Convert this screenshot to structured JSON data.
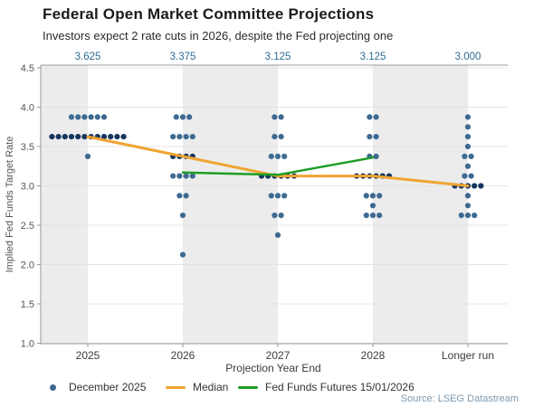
{
  "header": {
    "title": "Federal Open Market Committee Projections",
    "subtitle": "Investors expect 2 rate cuts in 2026, despite the Fed projecting one"
  },
  "source": {
    "text": "Source: LSEG Datastream"
  },
  "colors": {
    "dot": "#3e6a92",
    "dot_median": "#15355e",
    "median_line": "#f0a432",
    "futures_line": "#1d9e26",
    "top_label": "#2d6d94",
    "band": "#ececec",
    "grid": "#e4e4e4",
    "axis": "#999999",
    "tick_text": "#555555",
    "cat_text": "#3c3c3c",
    "source_text": "#7e9ab0"
  },
  "chart_data": {
    "type": "scatter",
    "title": "Federal Open Market Committee Projections",
    "subtitle": "Investors expect 2 rate cuts in 2026, despite the Fed projecting one",
    "xlabel": "Projection Year End",
    "ylabel": "Implied Fed Funds Target Rate",
    "ylim": [
      1.0,
      4.5
    ],
    "ytick_step": 0.5,
    "grid": true,
    "legend_position": "bottom",
    "categories": [
      "2025",
      "2026",
      "2027",
      "2028",
      "Longer run"
    ],
    "top_labels": [
      "3.625",
      "3.375",
      "3.125",
      "3.125",
      "3.000"
    ],
    "columns": [
      {
        "label": "2025",
        "top_label": "3.625",
        "median": 3.625,
        "dots": [
          {
            "rate": 3.875,
            "n": 6
          },
          {
            "rate": 3.625,
            "n": 12,
            "is_median_row": true
          },
          {
            "rate": 3.375,
            "n": 1
          }
        ]
      },
      {
        "label": "2026",
        "top_label": "3.375",
        "median": 3.375,
        "dots": [
          {
            "rate": 3.875,
            "n": 3
          },
          {
            "rate": 3.625,
            "n": 4
          },
          {
            "rate": 3.375,
            "n": 4,
            "is_median_row": true
          },
          {
            "rate": 3.125,
            "n": 4
          },
          {
            "rate": 2.875,
            "n": 2
          },
          {
            "rate": 2.625,
            "n": 1
          },
          {
            "rate": 2.125,
            "n": 1
          }
        ]
      },
      {
        "label": "2027",
        "top_label": "3.125",
        "median": 3.125,
        "dots": [
          {
            "rate": 3.875,
            "n": 2
          },
          {
            "rate": 3.625,
            "n": 2
          },
          {
            "rate": 3.375,
            "n": 3
          },
          {
            "rate": 3.125,
            "n": 6,
            "is_median_row": true
          },
          {
            "rate": 2.875,
            "n": 3
          },
          {
            "rate": 2.625,
            "n": 2
          },
          {
            "rate": 2.375,
            "n": 1
          }
        ]
      },
      {
        "label": "2028",
        "top_label": "3.125",
        "median": 3.125,
        "dots": [
          {
            "rate": 3.875,
            "n": 2
          },
          {
            "rate": 3.625,
            "n": 2
          },
          {
            "rate": 3.375,
            "n": 2
          },
          {
            "rate": 3.125,
            "n": 6,
            "is_median_row": true
          },
          {
            "rate": 2.875,
            "n": 3
          },
          {
            "rate": 2.75,
            "n": 1
          },
          {
            "rate": 2.625,
            "n": 3
          }
        ]
      },
      {
        "label": "Longer run",
        "top_label": "3.000",
        "median": 3.0,
        "dots": [
          {
            "rate": 3.875,
            "n": 1
          },
          {
            "rate": 3.75,
            "n": 1
          },
          {
            "rate": 3.625,
            "n": 1
          },
          {
            "rate": 3.5,
            "n": 1
          },
          {
            "rate": 3.375,
            "n": 2
          },
          {
            "rate": 3.25,
            "n": 1
          },
          {
            "rate": 3.125,
            "n": 2
          },
          {
            "rate": 3.0,
            "n": 5,
            "is_median_row": true
          },
          {
            "rate": 2.875,
            "n": 1
          },
          {
            "rate": 2.75,
            "n": 1
          },
          {
            "rate": 2.625,
            "n": 3
          }
        ]
      }
    ],
    "series": [
      {
        "name": "December 2025",
        "type": "dots"
      },
      {
        "name": "Median",
        "type": "line",
        "categories": [
          "2025",
          "2026",
          "2027",
          "2028",
          "Longer run"
        ],
        "values": [
          3.625,
          3.375,
          3.125,
          3.125,
          3.0
        ]
      },
      {
        "name": "Fed Funds Futures 15/01/2026",
        "type": "line",
        "categories": [
          "2026",
          "2027",
          "2028"
        ],
        "values": [
          3.17,
          3.14,
          3.36
        ]
      }
    ],
    "legend": [
      "December 2025",
      "Median",
      "Fed Funds Futures 15/01/2026"
    ]
  }
}
